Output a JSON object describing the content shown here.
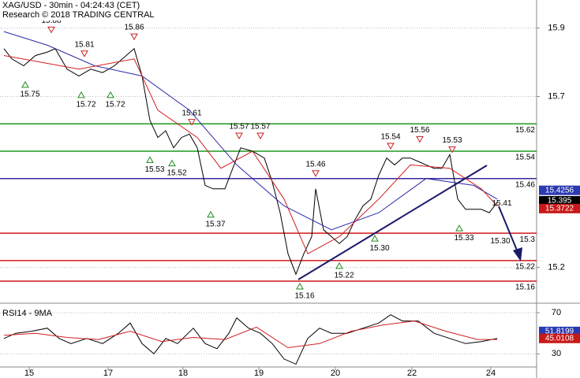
{
  "chart_data": [
    {
      "type": "line",
      "title": "XAG/USD - 30min - 04:24:43 (CET)",
      "subtitle": "Research © 2018 TRADING CENTRAL",
      "xlim": [
        0,
        680
      ],
      "ylim": [
        15.1,
        15.98
      ],
      "yticks": [
        15.2,
        15.7,
        15.9
      ],
      "grid": true,
      "series": [
        {
          "color": "#000000",
          "x": [
            5,
            15,
            30,
            45,
            60,
            70,
            85,
            100,
            115,
            130,
            145,
            160,
            170,
            180,
            190,
            200,
            210,
            220,
            230,
            240,
            250,
            260,
            270,
            285,
            295,
            305,
            320,
            335,
            345,
            355,
            365,
            375,
            385,
            395,
            400,
            410,
            420,
            430,
            440,
            450,
            460,
            470,
            480,
            490,
            500,
            510,
            520,
            530,
            540,
            550,
            560,
            570,
            580,
            590,
            600,
            610,
            620,
            630
          ],
          "values": [
            15.84,
            15.81,
            15.79,
            15.82,
            15.83,
            15.84,
            15.78,
            15.76,
            15.78,
            15.77,
            15.79,
            15.82,
            15.84,
            15.76,
            15.63,
            15.58,
            15.6,
            15.55,
            15.58,
            15.59,
            15.55,
            15.44,
            15.43,
            15.43,
            15.49,
            15.55,
            15.54,
            15.52,
            15.45,
            15.36,
            15.24,
            15.18,
            15.24,
            15.29,
            15.43,
            15.31,
            15.29,
            15.27,
            15.29,
            15.34,
            15.38,
            15.4,
            15.47,
            15.52,
            15.5,
            15.52,
            15.52,
            15.51,
            15.5,
            15.49,
            15.49,
            15.53,
            15.4,
            15.37,
            15.37,
            15.37,
            15.36,
            15.39
          ]
        },
        {
          "color": "#2a2aa8",
          "x": [
            5,
            60,
            120,
            180,
            240,
            300,
            360,
            420,
            480,
            540,
            600,
            630
          ],
          "values": [
            15.89,
            15.85,
            15.79,
            15.76,
            15.66,
            15.5,
            15.38,
            15.31,
            15.36,
            15.46,
            15.44,
            15.4
          ]
        },
        {
          "color": "#d02020",
          "x": [
            5,
            100,
            170,
            200,
            250,
            280,
            320,
            360,
            390,
            430,
            480,
            520,
            570,
            610,
            630
          ],
          "values": [
            15.82,
            15.78,
            15.81,
            15.66,
            15.58,
            15.49,
            15.54,
            15.4,
            15.24,
            15.29,
            15.4,
            15.5,
            15.49,
            15.43,
            15.38
          ]
        }
      ],
      "levels": [
        {
          "value": 15.62,
          "color": "#1f9a1f"
        },
        {
          "value": 15.54,
          "color": "#1f9a1f"
        },
        {
          "value": 15.46,
          "color": "#3a2a9a"
        },
        {
          "value": 15.3,
          "color": "#d01818"
        },
        {
          "value": 15.22,
          "color": "#d01818"
        },
        {
          "value": 15.16,
          "color": "#d01818"
        }
      ],
      "highs": [
        {
          "x": 65,
          "value": 15.88
        },
        {
          "x": 107,
          "value": 15.81
        },
        {
          "x": 170,
          "value": 15.86
        },
        {
          "x": 243,
          "value": 15.61
        },
        {
          "x": 303,
          "value": 15.57
        },
        {
          "x": 330,
          "value": 15.57
        },
        {
          "x": 400,
          "value": 15.46
        },
        {
          "x": 495,
          "value": 15.54
        },
        {
          "x": 532,
          "value": 15.56
        },
        {
          "x": 573,
          "value": 15.53
        }
      ],
      "lows": [
        {
          "x": 32,
          "value": 15.75
        },
        {
          "x": 103,
          "value": 15.72
        },
        {
          "x": 140,
          "value": 15.72
        },
        {
          "x": 190,
          "value": 15.53
        },
        {
          "x": 218,
          "value": 15.52
        },
        {
          "x": 267,
          "value": 15.37
        },
        {
          "x": 380,
          "value": 15.16
        },
        {
          "x": 430,
          "value": 15.22
        },
        {
          "x": 475,
          "value": 15.3,
          "label": "15.30"
        },
        {
          "x": 582,
          "value": 15.33
        }
      ],
      "notes": [
        {
          "x": 636,
          "value": 15.41
        },
        {
          "x": 634,
          "value": 15.3,
          "label": "15.30"
        }
      ],
      "price_tags": [
        {
          "value": 15.4256,
          "color": "#2a3ab0"
        },
        {
          "value": 15.395,
          "color": "#000000"
        },
        {
          "value": 15.3722,
          "color": "#c81818"
        }
      ]
    },
    {
      "type": "line",
      "title": "RSI14 - 9MA",
      "xlim": [
        0,
        680
      ],
      "ylim": [
        18,
        77
      ],
      "yticks": [
        30,
        70
      ],
      "grid": true,
      "xticks": [
        {
          "value": 37,
          "label": "15"
        },
        {
          "value": 137,
          "label": "17"
        },
        {
          "value": 232,
          "label": "18"
        },
        {
          "value": 328,
          "label": "19"
        },
        {
          "value": 425,
          "label": "20"
        },
        {
          "value": 522,
          "label": "22"
        },
        {
          "value": 622,
          "label": "24"
        }
      ],
      "series": [
        {
          "color": "#000000",
          "x": [
            5,
            20,
            40,
            60,
            75,
            90,
            110,
            130,
            150,
            165,
            180,
            195,
            210,
            225,
            245,
            260,
            275,
            290,
            300,
            315,
            330,
            345,
            360,
            375,
            390,
            405,
            420,
            440,
            460,
            480,
            495,
            510,
            530,
            550,
            570,
            590,
            610,
            630
          ],
          "values": [
            45,
            50,
            52,
            55,
            45,
            40,
            45,
            40,
            50,
            60,
            40,
            30,
            45,
            40,
            55,
            40,
            35,
            50,
            65,
            55,
            50,
            40,
            25,
            20,
            45,
            55,
            50,
            50,
            55,
            60,
            68,
            62,
            62,
            50,
            45,
            40,
            42,
            45
          ]
        },
        {
          "color": "#d02020",
          "x": [
            5,
            45,
            85,
            125,
            165,
            205,
            245,
            285,
            325,
            365,
            405,
            445,
            485,
            525,
            565,
            605,
            630
          ],
          "values": [
            48,
            50,
            46,
            44,
            52,
            42,
            46,
            44,
            56,
            36,
            40,
            52,
            58,
            62,
            52,
            44,
            44
          ]
        }
      ],
      "price_tags": [
        {
          "value": 51.8199,
          "color": "#2a3ab0"
        },
        {
          "value": 45.0108,
          "color": "#c81818"
        }
      ]
    }
  ]
}
